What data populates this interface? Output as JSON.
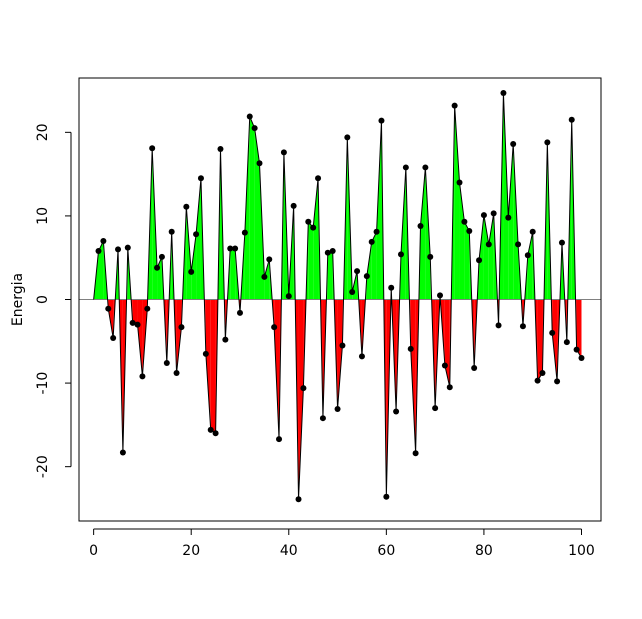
{
  "chart_data": {
    "type": "area",
    "title": "",
    "xlabel": "",
    "ylabel": "Energia",
    "xlim": [
      -3,
      104
    ],
    "ylim": [
      -26.5,
      26.5
    ],
    "x_ticks": [
      0,
      20,
      40,
      60,
      80,
      100
    ],
    "y_ticks": [
      -20,
      -10,
      0,
      10,
      20
    ],
    "baseline": 0,
    "grid": false,
    "legend": "none",
    "colors": {
      "positive_fill": "#00ff00",
      "negative_fill": "#ff0000",
      "line": "#000000",
      "point": "#000000",
      "baseline": "#808080",
      "frame": "#000000"
    },
    "series": [
      {
        "x": [
          0,
          1,
          2,
          3,
          4,
          5,
          6,
          7,
          8,
          9,
          10,
          11,
          12,
          13,
          14,
          15,
          16,
          17,
          18,
          19,
          20,
          21,
          22,
          23,
          24,
          25,
          26,
          27,
          28,
          29,
          30,
          31,
          32,
          33,
          34,
          35,
          36,
          37,
          38,
          39,
          40,
          41,
          42,
          43,
          44,
          45,
          46,
          47,
          48,
          49,
          50,
          51,
          52,
          53,
          54,
          55,
          56,
          57,
          58,
          59,
          60,
          61,
          62,
          63,
          64,
          65,
          66,
          67,
          68,
          69,
          70,
          71,
          72,
          73,
          74,
          75,
          76,
          77,
          78,
          79,
          80,
          81,
          82,
          83,
          84,
          85,
          86,
          87,
          88,
          89,
          90,
          91,
          92,
          93,
          94,
          95,
          96,
          97,
          98,
          99,
          100
        ],
        "values": [
          0,
          5.8,
          7.0,
          -1.1,
          -4.6,
          6.0,
          -18.3,
          6.2,
          -2.8,
          -3.0,
          -9.2,
          -1.1,
          18.1,
          3.8,
          5.1,
          -7.6,
          8.1,
          -8.8,
          -3.3,
          11.1,
          3.3,
          7.8,
          14.5,
          -6.5,
          -15.6,
          -16.0,
          18.0,
          -4.8,
          6.1,
          6.1,
          -1.6,
          8.0,
          21.9,
          20.5,
          16.3,
          2.7,
          4.8,
          -3.3,
          -16.7,
          17.6,
          0.4,
          11.2,
          -23.9,
          -10.6,
          9.3,
          8.6,
          14.5,
          -14.2,
          5.6,
          5.8,
          -13.1,
          -5.5,
          19.4,
          0.9,
          3.4,
          -6.8,
          2.8,
          6.9,
          8.1,
          21.4,
          -23.6,
          1.4,
          -13.4,
          5.4,
          15.8,
          -5.9,
          -18.4,
          8.8,
          15.8,
          5.1,
          -13.0,
          0.5,
          -7.9,
          -10.5,
          23.2,
          14.0,
          9.3,
          8.2,
          -8.2,
          4.7,
          10.1,
          6.6,
          10.3,
          -3.1,
          24.7,
          9.8,
          18.6,
          6.6,
          -3.2,
          5.3,
          8.1,
          -9.7,
          -8.8,
          18.8,
          -4.0,
          -9.8,
          6.8,
          -5.1,
          21.5,
          -6.0,
          -7.0
        ]
      }
    ]
  }
}
